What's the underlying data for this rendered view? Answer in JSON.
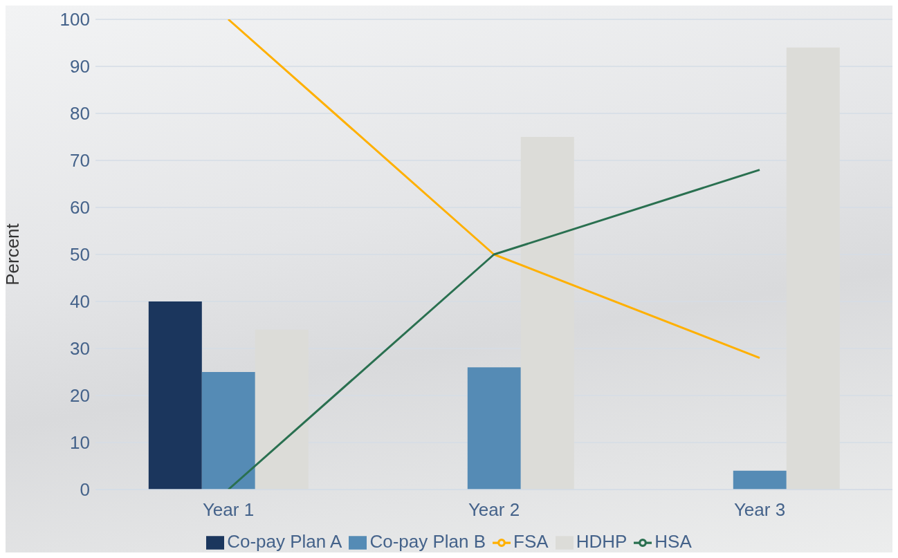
{
  "chart_data": {
    "type": "bar",
    "ylabel": "Percent",
    "categories": [
      "Year 1",
      "Year 2",
      "Year 3"
    ],
    "series": [
      {
        "name": "Co-pay Plan A",
        "color": "#1b365d",
        "values": [
          40,
          0,
          0
        ]
      },
      {
        "name": "Co-pay Plan B",
        "color": "#558bb5",
        "values": [
          25,
          26,
          4
        ]
      },
      {
        "name": "HDHP",
        "color": "#dcdcd8",
        "values": [
          34,
          75,
          94
        ]
      },
      {
        "name": "FSA",
        "type": "line",
        "color": "#ffb000",
        "values": [
          100,
          50,
          28
        ]
      },
      {
        "name": "HSA",
        "type": "line",
        "color": "#2a7050",
        "values": [
          0,
          50,
          68
        ]
      }
    ],
    "ylim": [
      0,
      100
    ],
    "yticks": [
      0,
      10,
      20,
      30,
      40,
      50,
      60,
      70,
      80,
      90,
      100
    ],
    "grid": "y",
    "legend": "bottom",
    "marker": "none",
    "line_style": "solid"
  }
}
